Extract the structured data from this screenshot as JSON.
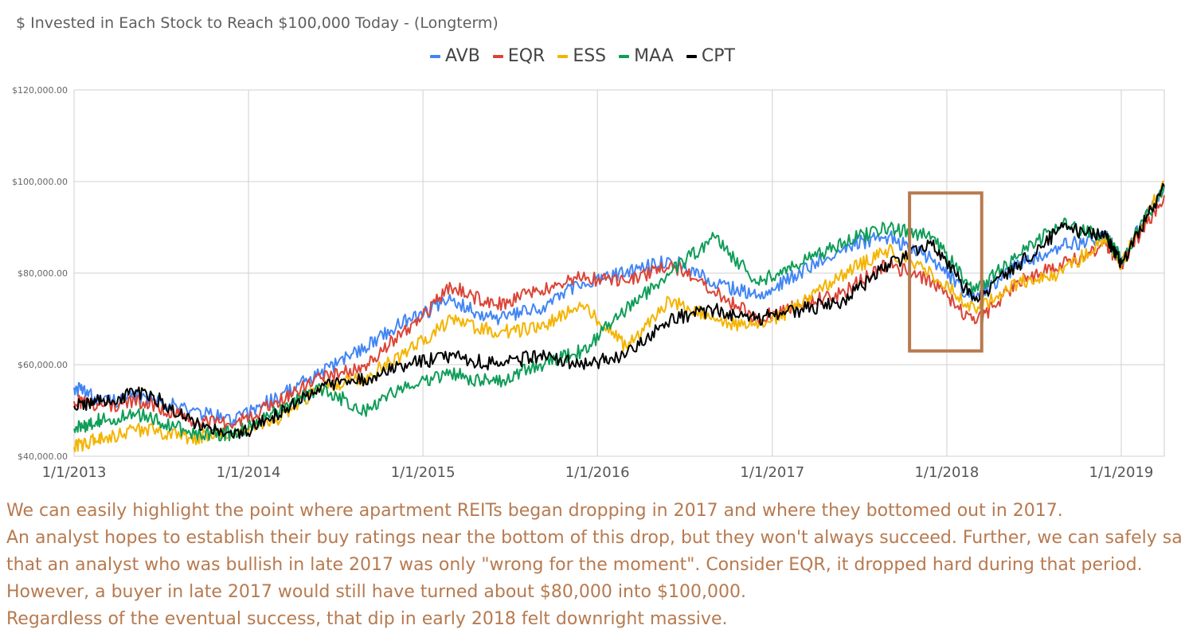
{
  "chart_data": {
    "type": "line",
    "title": "$ Invested in Each Stock to Reach $100,000 Today - (Longterm)",
    "xlabel": "",
    "ylabel": "",
    "x_tick_labels": [
      "1/1/2013",
      "1/1/2014",
      "1/1/2015",
      "1/1/2016",
      "1/1/2017",
      "1/1/2018",
      "1/1/2019"
    ],
    "y_tick_labels": [
      "$40,000.00",
      "$60,000.00",
      "$80,000.00",
      "$100,000.00",
      "$120,000.00"
    ],
    "xlim": [
      "2013-01-01",
      "2019-04-01"
    ],
    "ylim": [
      40000,
      120000
    ],
    "grid": true,
    "legend_position": "top-center",
    "series": [
      {
        "name": "AVB",
        "color": "#4285f4",
        "points": [
          [
            "2013-01-01",
            55000
          ],
          [
            "2013-03-01",
            52000
          ],
          [
            "2013-06-01",
            53000
          ],
          [
            "2013-09-01",
            50000
          ],
          [
            "2013-12-01",
            48000
          ],
          [
            "2014-03-01",
            53000
          ],
          [
            "2014-06-01",
            58000
          ],
          [
            "2014-09-01",
            64000
          ],
          [
            "2014-12-01",
            70000
          ],
          [
            "2015-03-01",
            74000
          ],
          [
            "2015-06-01",
            70000
          ],
          [
            "2015-09-01",
            72000
          ],
          [
            "2015-12-01",
            78000
          ],
          [
            "2016-03-01",
            80000
          ],
          [
            "2016-06-01",
            83000
          ],
          [
            "2016-09-01",
            78000
          ],
          [
            "2016-12-01",
            75000
          ],
          [
            "2017-03-01",
            80000
          ],
          [
            "2017-06-01",
            86000
          ],
          [
            "2017-09-01",
            88000
          ],
          [
            "2017-12-01",
            83000
          ],
          [
            "2018-03-01",
            74000
          ],
          [
            "2018-06-01",
            82000
          ],
          [
            "2018-09-01",
            86000
          ],
          [
            "2018-12-01",
            88000
          ],
          [
            "2019-01-01",
            83000
          ],
          [
            "2019-04-01",
            99000
          ]
        ]
      },
      {
        "name": "EQR",
        "color": "#db4437",
        "points": [
          [
            "2013-01-01",
            52000
          ],
          [
            "2013-03-01",
            51000
          ],
          [
            "2013-06-01",
            52000
          ],
          [
            "2013-09-01",
            48000
          ],
          [
            "2013-12-01",
            47000
          ],
          [
            "2014-03-01",
            52000
          ],
          [
            "2014-06-01",
            57000
          ],
          [
            "2014-09-01",
            60000
          ],
          [
            "2014-12-01",
            68000
          ],
          [
            "2015-03-01",
            77000
          ],
          [
            "2015-06-01",
            73000
          ],
          [
            "2015-09-01",
            76000
          ],
          [
            "2015-12-01",
            79000
          ],
          [
            "2016-03-01",
            78000
          ],
          [
            "2016-06-01",
            82000
          ],
          [
            "2016-09-01",
            76000
          ],
          [
            "2016-12-01",
            70000
          ],
          [
            "2017-03-01",
            73000
          ],
          [
            "2017-06-01",
            76000
          ],
          [
            "2017-09-01",
            82000
          ],
          [
            "2017-12-01",
            78000
          ],
          [
            "2018-03-01",
            69000
          ],
          [
            "2018-06-01",
            78000
          ],
          [
            "2018-09-01",
            82000
          ],
          [
            "2018-12-01",
            86000
          ],
          [
            "2019-01-01",
            82000
          ],
          [
            "2019-04-01",
            97000
          ]
        ]
      },
      {
        "name": "ESS",
        "color": "#f4b400",
        "points": [
          [
            "2013-01-01",
            42000
          ],
          [
            "2013-03-01",
            44000
          ],
          [
            "2013-06-01",
            46000
          ],
          [
            "2013-09-01",
            44000
          ],
          [
            "2013-12-01",
            45000
          ],
          [
            "2014-03-01",
            48000
          ],
          [
            "2014-06-01",
            55000
          ],
          [
            "2014-09-01",
            57000
          ],
          [
            "2014-12-01",
            63000
          ],
          [
            "2015-03-01",
            70000
          ],
          [
            "2015-06-01",
            67000
          ],
          [
            "2015-09-01",
            68000
          ],
          [
            "2015-12-01",
            73000
          ],
          [
            "2016-03-01",
            64000
          ],
          [
            "2016-06-01",
            74000
          ],
          [
            "2016-09-01",
            70000
          ],
          [
            "2016-12-01",
            68000
          ],
          [
            "2017-03-01",
            73000
          ],
          [
            "2017-06-01",
            80000
          ],
          [
            "2017-09-01",
            85000
          ],
          [
            "2017-12-01",
            80000
          ],
          [
            "2018-03-01",
            72000
          ],
          [
            "2018-06-01",
            78000
          ],
          [
            "2018-09-01",
            80000
          ],
          [
            "2018-12-01",
            88000
          ],
          [
            "2019-01-01",
            82000
          ],
          [
            "2019-04-01",
            100000
          ]
        ]
      },
      {
        "name": "MAA",
        "color": "#0f9d58",
        "points": [
          [
            "2013-01-01",
            46000
          ],
          [
            "2013-03-01",
            48000
          ],
          [
            "2013-06-01",
            49000
          ],
          [
            "2013-09-01",
            45000
          ],
          [
            "2013-12-01",
            45000
          ],
          [
            "2014-03-01",
            50000
          ],
          [
            "2014-06-01",
            55000
          ],
          [
            "2014-09-01",
            50000
          ],
          [
            "2014-12-01",
            56000
          ],
          [
            "2015-03-01",
            58000
          ],
          [
            "2015-06-01",
            56000
          ],
          [
            "2015-09-01",
            60000
          ],
          [
            "2015-12-01",
            63000
          ],
          [
            "2016-03-01",
            72000
          ],
          [
            "2016-06-01",
            80000
          ],
          [
            "2016-09-01",
            88000
          ],
          [
            "2016-12-01",
            78000
          ],
          [
            "2017-03-01",
            82000
          ],
          [
            "2017-06-01",
            87000
          ],
          [
            "2017-09-01",
            90000
          ],
          [
            "2017-12-01",
            88000
          ],
          [
            "2018-03-01",
            76000
          ],
          [
            "2018-06-01",
            84000
          ],
          [
            "2018-09-01",
            91000
          ],
          [
            "2018-12-01",
            88000
          ],
          [
            "2019-01-01",
            83000
          ],
          [
            "2019-04-01",
            99000
          ]
        ]
      },
      {
        "name": "CPT",
        "color": "#000000",
        "points": [
          [
            "2013-01-01",
            51000
          ],
          [
            "2013-03-01",
            52000
          ],
          [
            "2013-06-01",
            54000
          ],
          [
            "2013-09-01",
            48000
          ],
          [
            "2013-12-01",
            44000
          ],
          [
            "2014-03-01",
            49000
          ],
          [
            "2014-06-01",
            55000
          ],
          [
            "2014-09-01",
            57000
          ],
          [
            "2014-12-01",
            60000
          ],
          [
            "2015-03-01",
            62000
          ],
          [
            "2015-06-01",
            60000
          ],
          [
            "2015-09-01",
            62000
          ],
          [
            "2015-12-01",
            60000
          ],
          [
            "2016-03-01",
            62000
          ],
          [
            "2016-06-01",
            70000
          ],
          [
            "2016-09-01",
            72000
          ],
          [
            "2016-12-01",
            70000
          ],
          [
            "2017-03-01",
            72000
          ],
          [
            "2017-06-01",
            74000
          ],
          [
            "2017-09-01",
            82000
          ],
          [
            "2017-12-01",
            86000
          ],
          [
            "2018-03-01",
            74000
          ],
          [
            "2018-06-01",
            82000
          ],
          [
            "2018-09-01",
            90000
          ],
          [
            "2018-12-01",
            88000
          ],
          [
            "2019-01-01",
            82000
          ],
          [
            "2019-04-01",
            99000
          ]
        ]
      }
    ],
    "annotations": [
      {
        "type": "rectangle",
        "color": "#b77a4f",
        "x_range": [
          "2017-10-15",
          "2018-03-15"
        ],
        "y_range": [
          63000,
          97500
        ]
      }
    ]
  },
  "caption": [
    "We can easily highlight the point where apartment REITs began dropping in 2017 and where they bottomed out in 2017.",
    "An analyst hopes to establish their buy ratings near the bottom of this drop, but they won't always succeed. Further, we can safely say",
    "that an analyst who was bullish in late 2017 was only \"wrong for the moment\". Consider EQR, it dropped hard during that period.",
    "However, a buyer in late 2017 would still have turned about $80,000 into $100,000.",
    "Regardless of the eventual success, that dip in early 2018 felt downright massive."
  ]
}
